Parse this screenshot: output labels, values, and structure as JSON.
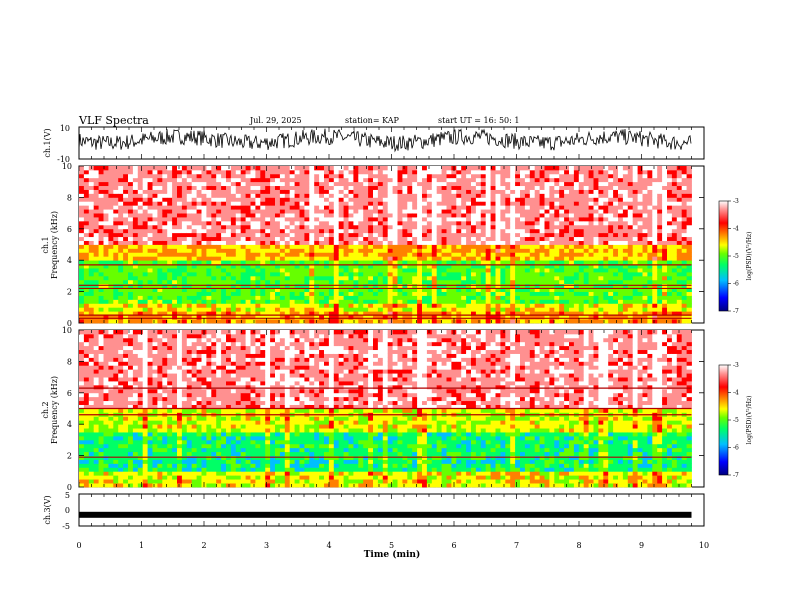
{
  "header": {
    "title": "VLF Spectra",
    "date": "Jul. 29, 2025",
    "station": "station= KAP",
    "start": "start UT =  16: 50: 1"
  },
  "colors": {
    "scale": [
      "#000080",
      "#0000ff",
      "#00bfff",
      "#00ff66",
      "#66ff00",
      "#ffff00",
      "#ff8000",
      "#ff0000",
      "#ff9090",
      "#ffffff"
    ]
  },
  "chart_data": [
    {
      "type": "line",
      "panel": "ch1-waveform",
      "ylabel": "ch.1(V)",
      "ylim": [
        -10,
        10
      ],
      "yticks": [
        10,
        -10
      ],
      "approx_mean_v": 2,
      "approx_amplitude_v": 5
    },
    {
      "type": "heatmap",
      "panel": "ch1-spectrogram",
      "ylabel": "ch.1\nFrequency (kHz)",
      "ylim": [
        0,
        10
      ],
      "yticks": [
        0,
        2,
        4,
        6,
        8,
        10
      ],
      "colorbar": {
        "label": "log(PSD)(V²/Hz)",
        "range": [
          -7,
          -3
        ],
        "ticks": [
          -3,
          -4,
          -5,
          -6,
          -7
        ]
      },
      "bands": [
        {
          "from_khz": 0.0,
          "to_khz": 0.7,
          "level": -4.5
        },
        {
          "from_khz": 0.7,
          "to_khz": 1.2,
          "level": -4.8
        },
        {
          "from_khz": 1.2,
          "to_khz": 3.8,
          "level": -5.3
        },
        {
          "from_khz": 3.8,
          "to_khz": 5.0,
          "level": -4.6
        },
        {
          "from_khz": 5.0,
          "to_khz": 10.0,
          "level": -3.6
        }
      ],
      "lines_khz": [
        2.2,
        2.4,
        3.7,
        0.3,
        0.5
      ]
    },
    {
      "type": "heatmap",
      "panel": "ch2-spectrogram",
      "ylabel": "ch.2\nFrequency (kHz)",
      "ylim": [
        0,
        10
      ],
      "yticks": [
        0,
        2,
        4,
        6,
        8,
        10
      ],
      "colorbar": {
        "label": "log(PSD)(V²/Hz)",
        "range": [
          -7,
          -3
        ],
        "ticks": [
          -3,
          -4,
          -5,
          -6,
          -7
        ]
      },
      "bands": [
        {
          "from_khz": 0.0,
          "to_khz": 1.0,
          "level": -4.8
        },
        {
          "from_khz": 1.0,
          "to_khz": 3.5,
          "level": -5.6
        },
        {
          "from_khz": 3.5,
          "to_khz": 5.0,
          "level": -4.9
        },
        {
          "from_khz": 5.0,
          "to_khz": 10.0,
          "level": -3.6
        }
      ],
      "lines_khz": [
        1.9,
        4.6,
        5.0,
        6.3
      ]
    },
    {
      "type": "line",
      "panel": "ch3-waveform",
      "ylabel": "ch.3(V)",
      "ylim": [
        -5,
        5
      ],
      "yticks": [
        5,
        0,
        -5
      ],
      "approx_value_v": -1.5
    }
  ],
  "xaxis": {
    "label": "Time (min)",
    "ticks": [
      "0",
      "1",
      "2",
      "3",
      "4",
      "5",
      "6",
      "7",
      "8",
      "9",
      "10"
    ],
    "xlim": [
      0,
      10
    ],
    "data_end_min": 9.8
  }
}
